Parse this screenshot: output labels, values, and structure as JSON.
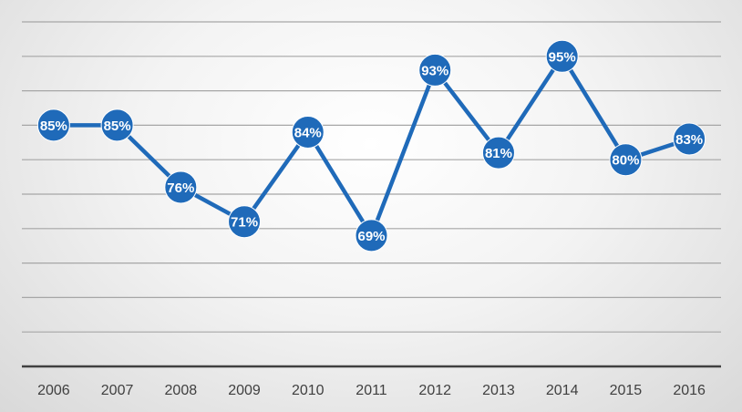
{
  "chart_data": {
    "type": "line",
    "categories": [
      "2006",
      "2007",
      "2008",
      "2009",
      "2010",
      "2011",
      "2012",
      "2013",
      "2014",
      "2015",
      "2016"
    ],
    "values": [
      85,
      85,
      76,
      71,
      84,
      69,
      93,
      81,
      95,
      80,
      83
    ],
    "data_labels": [
      "85%",
      "85%",
      "76%",
      "71%",
      "84%",
      "69%",
      "93%",
      "81%",
      "95%",
      "80%",
      "83%"
    ],
    "ylim": [
      50,
      100
    ],
    "grid": true,
    "legend": "none",
    "title": "",
    "xlabel": "",
    "ylabel": "",
    "colors": {
      "line": "#1f6ab9",
      "marker": "#1f6ab9",
      "marker_border": "#ffffff",
      "gridline": "#a6a6a6",
      "axis": "#404040",
      "label_text": "#ffffff",
      "tick_text": "#404040"
    }
  }
}
